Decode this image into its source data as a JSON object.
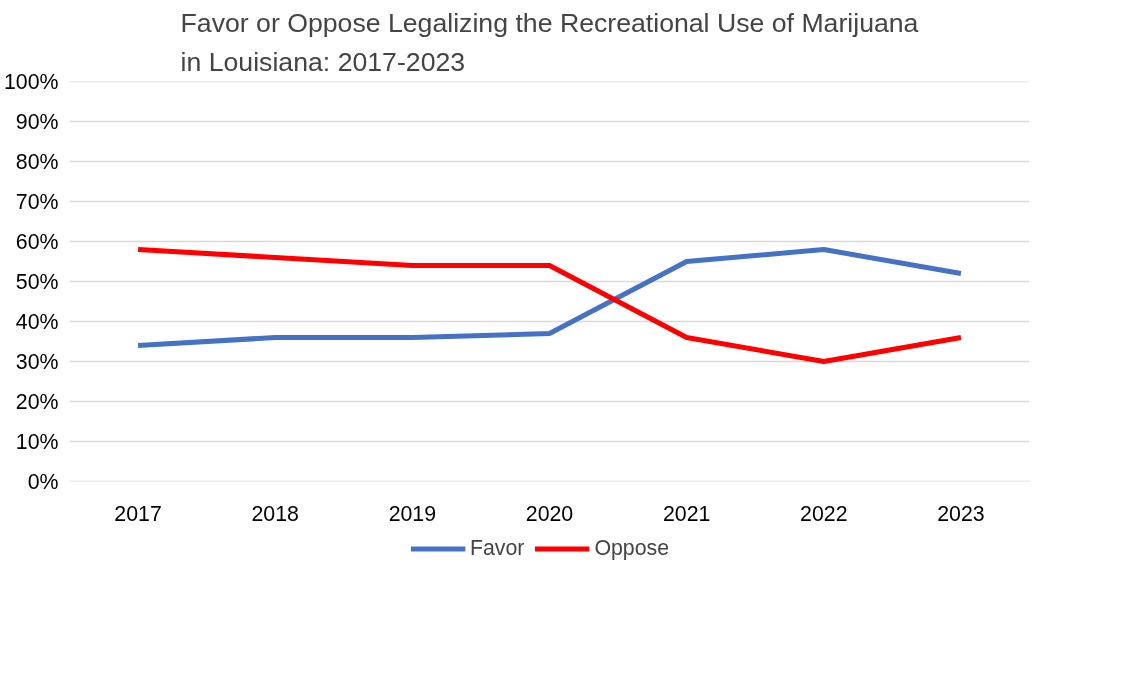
{
  "chart_data": {
    "type": "line",
    "title": "Favor or Oppose Legalizing the Recreational Use of Marijuana in Louisiana: 2017-2023",
    "categories": [
      "2017",
      "2018",
      "2019",
      "2020",
      "2021",
      "2022",
      "2023"
    ],
    "series": [
      {
        "name": "Favor",
        "color": "#4472c4",
        "values": [
          34,
          36,
          36,
          37,
          55,
          58,
          52
        ]
      },
      {
        "name": "Oppose",
        "color": "#ff0000",
        "values": [
          58,
          56,
          54,
          54,
          36,
          30,
          36
        ]
      }
    ],
    "ylim": [
      0,
      100
    ],
    "yticks": [
      {
        "value": 0,
        "label": "0%"
      },
      {
        "value": 10,
        "label": "10%"
      },
      {
        "value": 20,
        "label": "20%"
      },
      {
        "value": 30,
        "label": "30%"
      },
      {
        "value": 40,
        "label": "40%"
      },
      {
        "value": 50,
        "label": "50%"
      },
      {
        "value": 60,
        "label": "60%"
      },
      {
        "value": 70,
        "label": "70%"
      },
      {
        "value": 80,
        "label": "80%"
      },
      {
        "value": 90,
        "label": "90%"
      },
      {
        "value": 100,
        "label": "100%"
      }
    ],
    "grid": "y",
    "legend": "bottom",
    "marker": "none",
    "line_style": "solid"
  }
}
